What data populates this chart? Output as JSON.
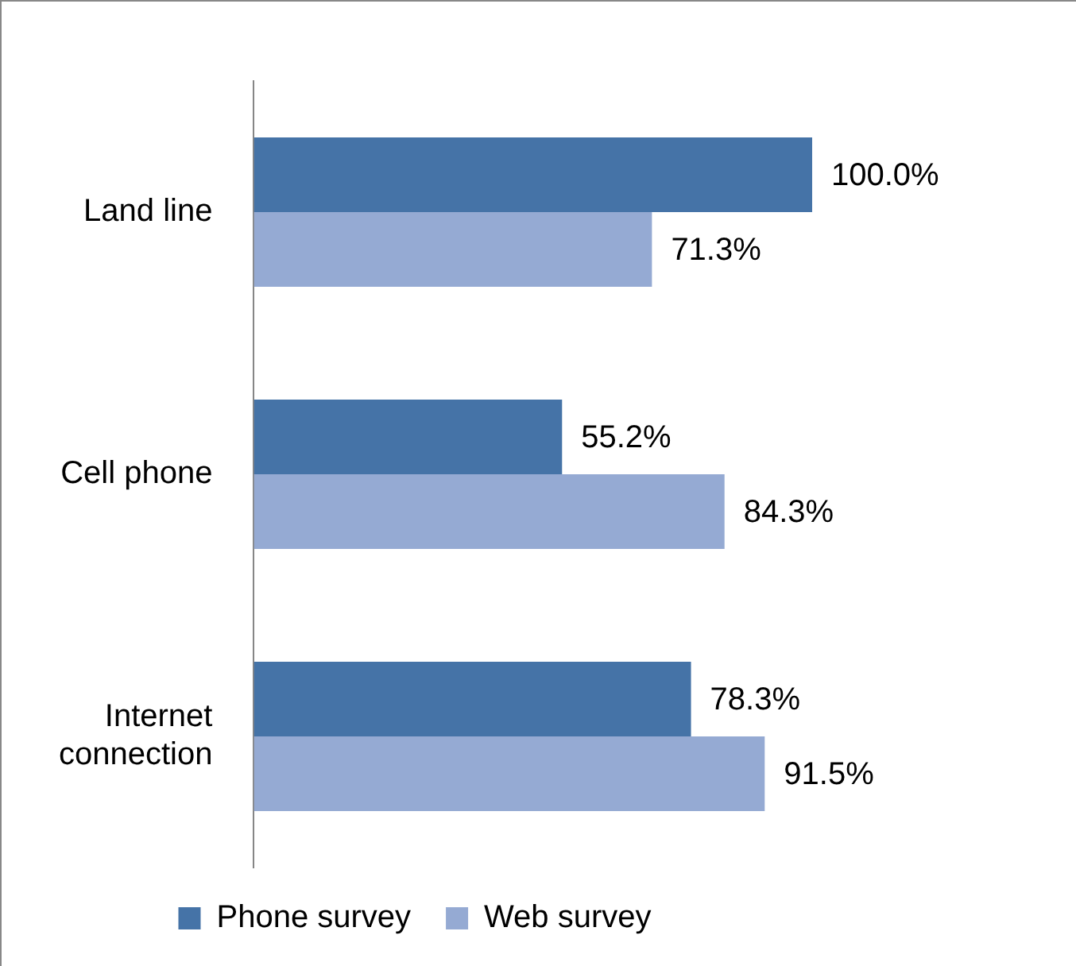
{
  "chart_data": {
    "type": "bar",
    "orientation": "horizontal",
    "categories": [
      "Land line",
      "Cell phone",
      "Internet connection"
    ],
    "series": [
      {
        "name": "Phone survey",
        "color": "#4573a7",
        "values": [
          100.0,
          55.2,
          78.3
        ],
        "value_labels": [
          "100.0%",
          "55.2%",
          "78.3%"
        ]
      },
      {
        "name": "Web survey",
        "color": "#95aad3",
        "values": [
          71.3,
          84.3,
          91.5
        ],
        "value_labels": [
          "71.3%",
          "84.3%",
          "91.5%"
        ]
      }
    ],
    "tick_labels": "y",
    "grid": false,
    "legend": "bottom"
  }
}
